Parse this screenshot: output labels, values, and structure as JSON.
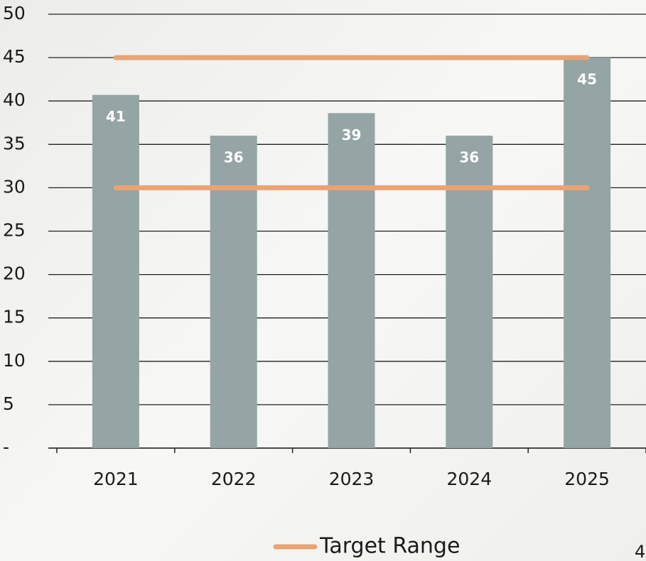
{
  "chart_data": {
    "type": "bar",
    "categories": [
      "2021",
      "2022",
      "2023",
      "2024",
      "2025"
    ],
    "values": [
      40.7,
      36,
      38.6,
      36,
      45
    ],
    "value_labels": [
      "41",
      "36",
      "39",
      "36",
      "45"
    ],
    "color": "#95a4a4",
    "target_range": {
      "name": "Target Range",
      "color": "#e8a474",
      "values": [
        30,
        45
      ]
    },
    "ylim": [
      0,
      50
    ],
    "yticks": [
      {
        "value": 0,
        "label": "-"
      },
      5,
      10,
      15,
      20,
      25,
      30,
      35,
      40,
      45,
      50
    ],
    "grid": true,
    "legend": "bottom",
    "page_number": "4"
  }
}
